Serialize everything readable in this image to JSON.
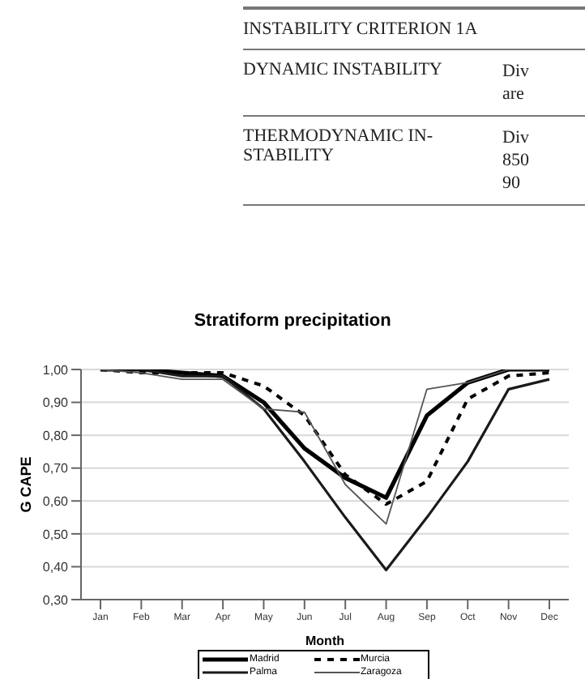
{
  "chart_data": {
    "type": "line",
    "title": "Stratiform precipitation",
    "xlabel": "Month",
    "ylabel": "G CAPE",
    "annotations": [
      "INSTABILITY CRITERION 1A",
      "DYNAMIC INSTABILITY",
      "Div are",
      "THERMODYNAMIC IN- STABILITY",
      "Div 850 90"
    ],
    "categories": [
      "Jan",
      "Feb",
      "Mar",
      "Apr",
      "May",
      "Jun",
      "Jul",
      "Aug",
      "Sep",
      "Oct",
      "Nov",
      "Dec"
    ],
    "series": [
      {
        "name": "Madrid",
        "color": "#000000",
        "line_style": "solid",
        "values": [
          1.0,
          1.0,
          0.99,
          0.98,
          0.9,
          0.76,
          0.67,
          0.61,
          0.86,
          0.96,
          1.0,
          1.0
        ]
      },
      {
        "name": "Murcia",
        "color": "#000000",
        "line_style": "dashed",
        "values": [
          1.0,
          0.99,
          0.99,
          0.99,
          0.95,
          0.86,
          0.68,
          0.59,
          0.66,
          0.91,
          0.98,
          0.99
        ]
      },
      {
        "name": "Palma",
        "color": "#1a1a1a",
        "line_style": "solid",
        "values": [
          1.0,
          1.0,
          0.98,
          0.98,
          0.88,
          0.72,
          0.55,
          0.39,
          0.55,
          0.72,
          0.94,
          0.97
        ]
      },
      {
        "name": "Zaragoza",
        "color": "#555555",
        "line_style": "solid",
        "values": [
          1.0,
          0.99,
          0.97,
          0.97,
          0.88,
          0.87,
          0.65,
          0.53,
          0.94,
          0.96,
          1.0,
          1.0
        ]
      }
    ],
    "ylim": [
      0.3,
      1.0
    ],
    "yticks": [
      {
        "value": 0.3,
        "label": "0,30"
      },
      {
        "value": 0.4,
        "label": "0,40"
      },
      {
        "value": 0.5,
        "label": "0,50"
      },
      {
        "value": 0.6,
        "label": "0,60"
      },
      {
        "value": 0.7,
        "label": "0,70"
      },
      {
        "value": 0.8,
        "label": "0,80"
      },
      {
        "value": 0.9,
        "label": "0,90"
      },
      {
        "value": 1.0,
        "label": "1,00"
      }
    ],
    "grid": "y",
    "legend": "bottom",
    "marker": "none"
  }
}
